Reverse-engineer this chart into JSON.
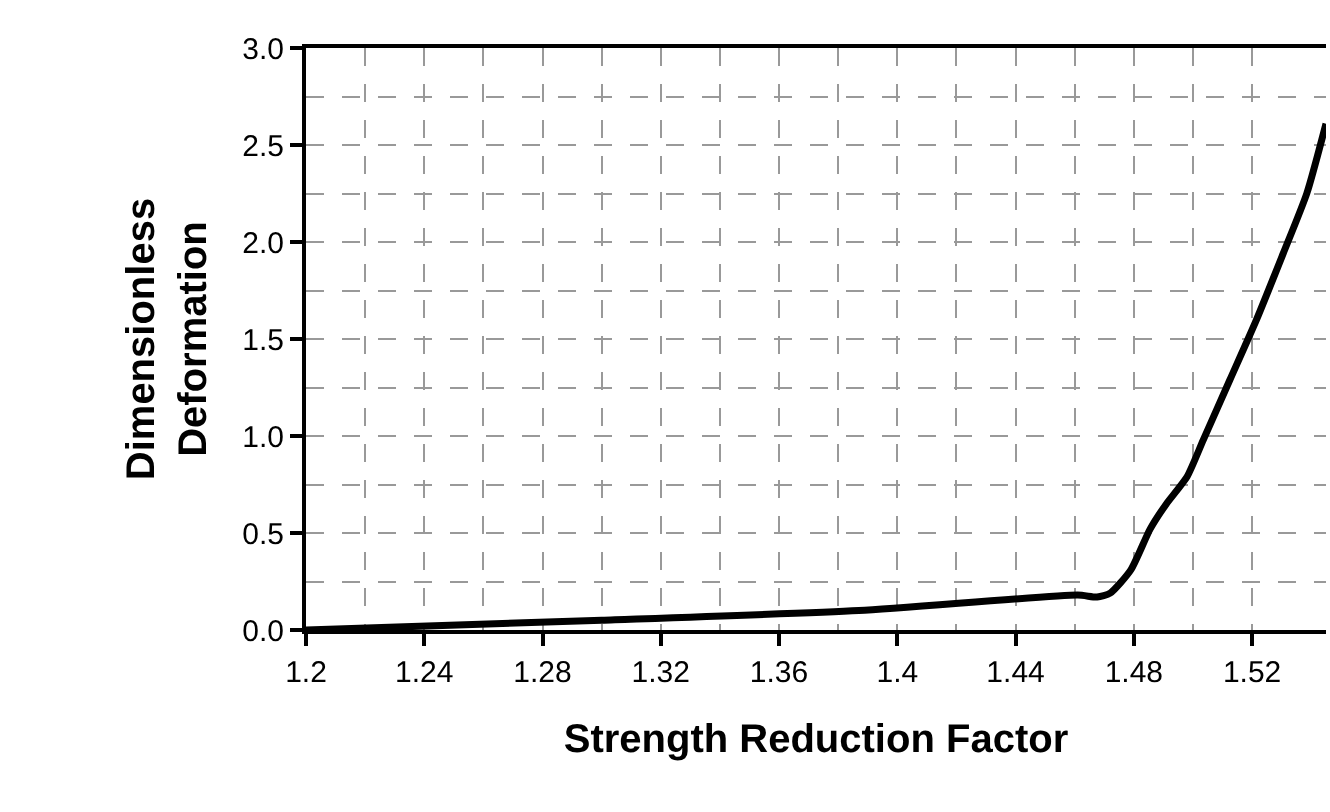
{
  "chart_data": {
    "type": "line",
    "xlabel": "Strength Reduction Factor",
    "ylabel": "Dimensionless\nDeformation",
    "x": [
      1.2,
      1.3,
      1.387,
      1.461,
      1.4676,
      1.472,
      1.479,
      1.4855,
      1.491,
      1.498,
      1.5035,
      1.5125,
      1.5215,
      1.5305,
      1.5385,
      1.545
    ],
    "series": [
      {
        "color": "#000000",
        "values": [
          0,
          0.05,
          0.1,
          0.18,
          0.17,
          0.19,
          0.31,
          0.52,
          0.65,
          0.79,
          0.98,
          1.29,
          1.6,
          1.94,
          2.25,
          2.61
        ]
      }
    ],
    "xlim": [
      1.2,
      1.545
    ],
    "xticks": [
      1.2,
      1.24,
      1.28,
      1.32,
      1.36,
      1.4,
      1.44,
      1.48,
      1.52
    ],
    "ylim": [
      0,
      3
    ],
    "yticks": [
      {
        "value": 0,
        "label": "0.0"
      },
      {
        "value": 0.5,
        "label": "0.5"
      },
      {
        "value": 1,
        "label": "1.0"
      },
      {
        "value": 1.5,
        "label": "1.5"
      },
      {
        "value": 2,
        "label": "2.0"
      },
      {
        "value": 2.5,
        "label": "2.5"
      },
      {
        "value": 3,
        "label": "3.0"
      }
    ],
    "grid": true,
    "marker": "none",
    "line_style": "solid"
  }
}
